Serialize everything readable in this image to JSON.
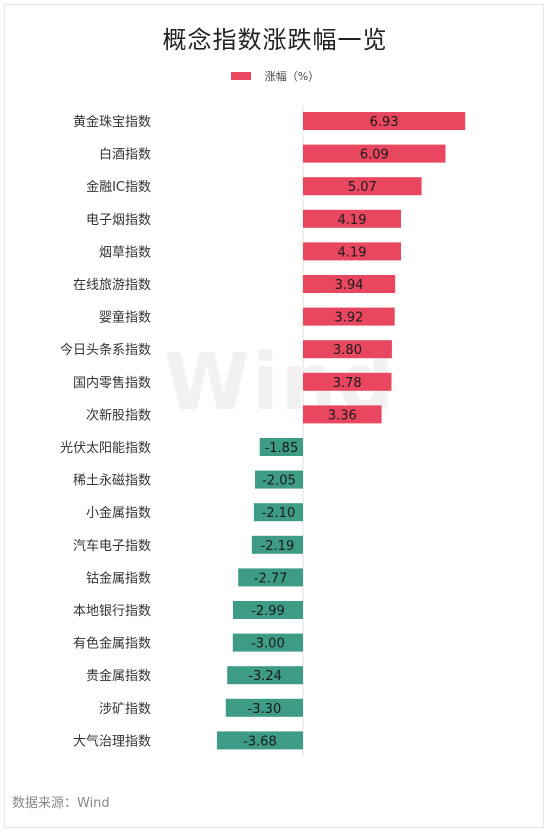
{
  "chart_data": {
    "type": "bar",
    "orientation": "horizontal",
    "title": "概念指数涨跌幅一览",
    "legend": {
      "label": "涨幅（%）",
      "placement": "top-center"
    },
    "series": [
      {
        "name": "涨幅（%）"
      }
    ],
    "categories": [
      "黄金珠宝指数",
      "白酒指数",
      "金融IC指数",
      "电子烟指数",
      "烟草指数",
      "在线旅游指数",
      "婴童指数",
      "今日头条系指数",
      "国内零售指数",
      "次新股指数",
      "光伏太阳能指数",
      "稀土永磁指数",
      "小金属指数",
      "汽车电子指数",
      "钴金属指数",
      "本地银行指数",
      "有色金属指数",
      "贵金属指数",
      "涉矿指数",
      "大气治理指数"
    ],
    "values": [
      6.93,
      6.09,
      5.07,
      4.19,
      4.19,
      3.94,
      3.92,
      3.8,
      3.78,
      3.36,
      -1.85,
      -2.05,
      -2.1,
      -2.19,
      -2.77,
      -2.99,
      -3.0,
      -3.24,
      -3.3,
      -3.68
    ],
    "value_labels": [
      "6.93",
      "6.09",
      "5.07",
      "4.19",
      "4.19",
      "3.94",
      "3.92",
      "3.80",
      "3.78",
      "3.36",
      "-1.85",
      "-2.05",
      "-2.10",
      "-2.19",
      "-2.77",
      "-2.99",
      "-3.00",
      "-3.24",
      "-3.30",
      "-3.68"
    ],
    "xlim": [
      -3.68,
      6.93
    ],
    "grid": false,
    "colors": {
      "positive": "#e8475f",
      "negative": "#3d9b86"
    }
  },
  "watermark": "Wind",
  "source": "数据来源：Wind"
}
